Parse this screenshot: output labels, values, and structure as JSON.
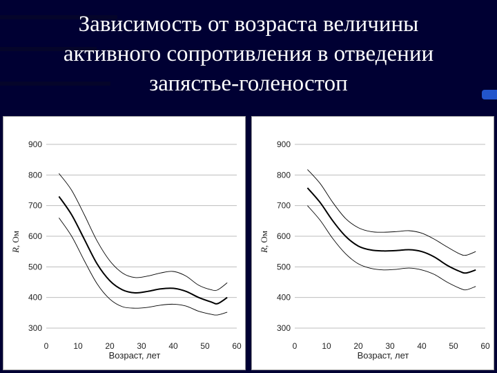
{
  "title_lines": [
    "Зависимость от возраста величины",
    "активного сопротивления в отведении",
    "запястье-голеностоп"
  ],
  "chart_data": [
    {
      "type": "line",
      "xlabel": "Возраст, лет",
      "ylabel_var": "R",
      "ylabel_unit": ", Ом",
      "xlim": [
        0,
        60
      ],
      "ylim": [
        300,
        900
      ],
      "xticks": [
        0,
        10,
        20,
        30,
        40,
        50,
        60
      ],
      "yticks": [
        300,
        400,
        500,
        600,
        700,
        800,
        900
      ],
      "grid": "horizontal",
      "x": [
        4,
        8,
        12,
        16,
        20,
        24,
        28,
        32,
        36,
        40,
        44,
        48,
        52,
        54,
        57
      ],
      "series": [
        {
          "role": "mean",
          "values": [
            730,
            670,
            590,
            510,
            455,
            425,
            415,
            420,
            428,
            430,
            420,
            400,
            385,
            380,
            400
          ]
        },
        {
          "role": "upper",
          "values": [
            805,
            750,
            670,
            585,
            520,
            480,
            465,
            470,
            480,
            485,
            470,
            440,
            425,
            425,
            448
          ]
        },
        {
          "role": "lower",
          "values": [
            660,
            600,
            520,
            445,
            395,
            370,
            365,
            368,
            375,
            378,
            372,
            355,
            345,
            343,
            352
          ]
        }
      ]
    },
    {
      "type": "line",
      "xlabel": "Возраст, лет",
      "ylabel_var": "R",
      "ylabel_unit": ", Ом",
      "xlim": [
        0,
        60
      ],
      "ylim": [
        300,
        900
      ],
      "xticks": [
        0,
        10,
        20,
        30,
        40,
        50,
        60
      ],
      "yticks": [
        300,
        400,
        500,
        600,
        700,
        800,
        900
      ],
      "grid": "horizontal",
      "x": [
        4,
        8,
        12,
        16,
        20,
        24,
        28,
        32,
        36,
        40,
        44,
        48,
        52,
        54,
        57
      ],
      "series": [
        {
          "role": "mean",
          "values": [
            758,
            710,
            650,
            600,
            568,
            555,
            552,
            553,
            556,
            550,
            532,
            505,
            485,
            480,
            490
          ]
        },
        {
          "role": "upper",
          "values": [
            818,
            772,
            710,
            658,
            628,
            615,
            613,
            615,
            618,
            610,
            590,
            565,
            542,
            538,
            550
          ]
        },
        {
          "role": "lower",
          "values": [
            700,
            652,
            592,
            543,
            510,
            495,
            490,
            492,
            496,
            490,
            475,
            450,
            430,
            425,
            436
          ]
        }
      ]
    }
  ],
  "colors": {
    "background": "#000033",
    "title_text": "#ffffff",
    "panel": "#ffffff",
    "grid": "#bdbdbd",
    "line": "#000000"
  }
}
